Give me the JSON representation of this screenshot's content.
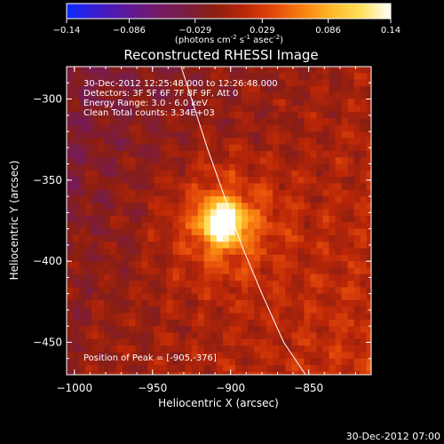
{
  "colorbar": {
    "ticks": [
      "-0.14",
      "-0.086",
      "-0.029",
      "0.029",
      "0.086",
      "0.14"
    ],
    "unit_parts": [
      "(photons cm",
      "-2",
      " s",
      "-1",
      " asec",
      "-2",
      ")"
    ],
    "colormap": [
      "#0a2bff",
      "#3a1cd0",
      "#5d189c",
      "#721a6b",
      "#7a1d44",
      "#8b1e12",
      "#b92608",
      "#e2470a",
      "#f88011",
      "#ffb829",
      "#ffe05a",
      "#ffffff"
    ]
  },
  "chart_data": {
    "type": "heatmap",
    "title": "Reconstructed RHESSI Image",
    "xlabel": "Heliocentric X (arcsec)",
    "ylabel": "Heliocentric Y (arcsec)",
    "xlim": [
      -1005,
      -810
    ],
    "ylim": [
      -470,
      -280
    ],
    "x_ticks": [
      -1000,
      -950,
      -900,
      -850
    ],
    "x_tick_labels": [
      "−1000",
      "−950",
      "−900",
      "−850"
    ],
    "y_ticks": [
      -300,
      -350,
      -400,
      -450
    ],
    "y_tick_labels": [
      "−300",
      "−350",
      "−400",
      "−450"
    ],
    "value_range": [
      -0.14,
      0.14
    ],
    "peak_value": 0.14,
    "peak": [
      -905,
      -376
    ],
    "annotations": [
      "30-Dec-2012 12:25:48.000 to 12:26:48.000",
      "Detectors: 3F 5F 6F 7F 8F 9F, Att 0",
      "Energy Range: 3.0 - 6.0 keV",
      "Clean     Total counts: 3.34E+03"
    ],
    "peak_label": "Position of Peak = [-905,-376]",
    "limb_curve": [
      [
        -935,
        -270
      ],
      [
        -925,
        -300
      ],
      [
        -915,
        -330
      ],
      [
        -904,
        -360
      ],
      [
        -893,
        -390
      ],
      [
        -880,
        -420
      ],
      [
        -866,
        -450
      ],
      [
        -852,
        -470
      ]
    ]
  },
  "footer": {
    "timestamp": "30-Dec-2012 07:00"
  }
}
